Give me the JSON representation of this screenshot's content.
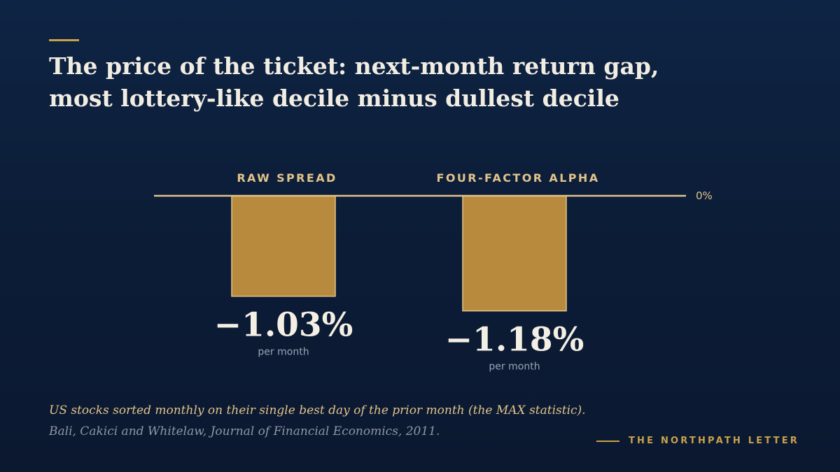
{
  "title": {
    "line1": "The price of the ticket: next-month return gap,",
    "line2": "most lottery-like decile minus dullest decile"
  },
  "chart_data": {
    "type": "bar",
    "categories": [
      "RAW SPREAD",
      "FOUR-FACTOR ALPHA"
    ],
    "values": [
      -1.03,
      -1.18
    ],
    "value_labels": [
      "−1.03%",
      "−1.18%"
    ],
    "unit_label": "per month",
    "baseline_label": "0%",
    "ylim": [
      -1.5,
      0
    ],
    "grid": false,
    "legend": "none",
    "colors": {
      "bar": "#b88a3e",
      "bar_outline": "#e2c48a",
      "baseline": "#e2c48a"
    }
  },
  "footer": {
    "note": "US stocks sorted monthly on their single best day of the prior month (the MAX statistic).",
    "source": "Bali, Cakici and Whitelaw, Journal of Financial Economics, 2011.",
    "brand": "THE NORTHPATH LETTER"
  }
}
